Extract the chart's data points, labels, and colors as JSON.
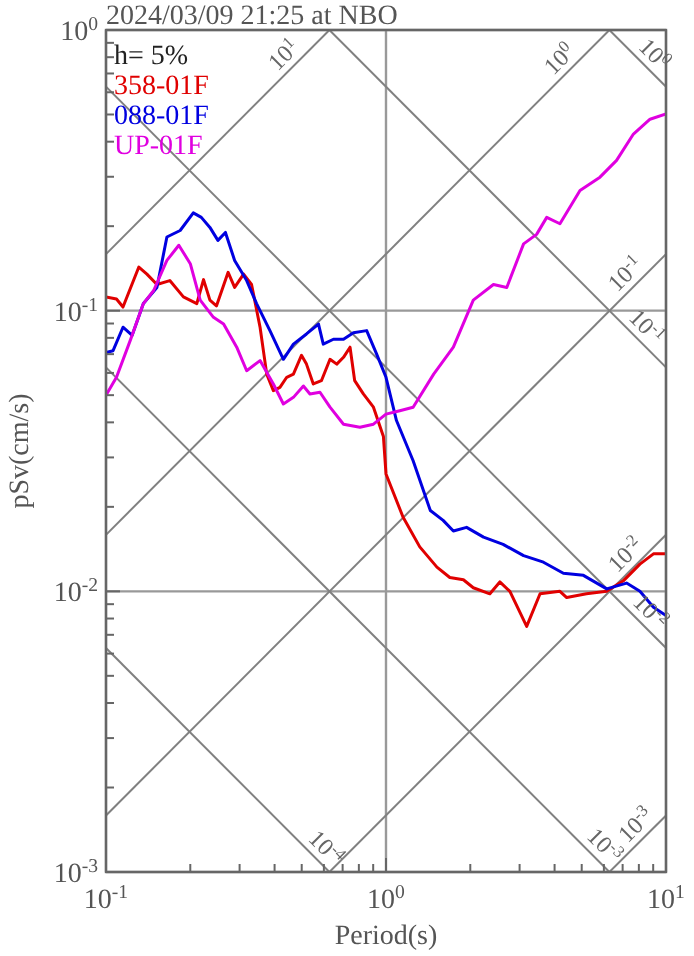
{
  "chart_data": {
    "type": "line",
    "title": "2024/03/09 21:25 at NBO",
    "xlabel": "Period(s)",
    "ylabel": "pSv(cm/s)",
    "log": "xy",
    "grid": true,
    "legend": "top left",
    "line_style": "solid",
    "marker": "none",
    "xlim": [
      0.1,
      10
    ],
    "ylim": [
      0.001,
      1
    ],
    "xticks": [
      {
        "value": 0.1,
        "label": "10$^{-1}$"
      },
      {
        "value": 0.2,
        "label": null
      },
      {
        "value": 0.3,
        "label": null
      },
      {
        "value": 0.4,
        "label": null
      },
      {
        "value": 0.5,
        "label": null
      },
      {
        "value": 0.6,
        "label": null
      },
      {
        "value": 0.7,
        "label": null
      },
      {
        "value": 0.8,
        "label": null
      },
      {
        "value": 0.9,
        "label": null
      },
      {
        "value": 1,
        "label": "10$^{0}$"
      },
      {
        "value": 2,
        "label": null
      },
      {
        "value": 3,
        "label": null
      },
      {
        "value": 4,
        "label": null
      },
      {
        "value": 5,
        "label": null
      },
      {
        "value": 6,
        "label": null
      },
      {
        "value": 7,
        "label": null
      },
      {
        "value": 8,
        "label": null
      },
      {
        "value": 9,
        "label": null
      },
      {
        "value": 10,
        "label": "10$^{1}$"
      }
    ],
    "yticks": [
      {
        "value": 0.001,
        "label": "10$^{-3}$"
      },
      {
        "value": 0.002,
        "label": null
      },
      {
        "value": 0.003,
        "label": null
      },
      {
        "value": 0.004,
        "label": null
      },
      {
        "value": 0.005,
        "label": null
      },
      {
        "value": 0.006,
        "label": null
      },
      {
        "value": 0.007,
        "label": null
      },
      {
        "value": 0.008,
        "label": null
      },
      {
        "value": 0.009,
        "label": null
      },
      {
        "value": 0.01,
        "label": "10$^{-2}$"
      },
      {
        "value": 0.02,
        "label": null
      },
      {
        "value": 0.03,
        "label": null
      },
      {
        "value": 0.04,
        "label": null
      },
      {
        "value": 0.05,
        "label": null
      },
      {
        "value": 0.06,
        "label": null
      },
      {
        "value": 0.07,
        "label": null
      },
      {
        "value": 0.08,
        "label": null
      },
      {
        "value": 0.09,
        "label": null
      },
      {
        "value": 0.1,
        "label": "10$^{-1}$"
      },
      {
        "value": 0.2,
        "label": null
      },
      {
        "value": 0.3,
        "label": null
      },
      {
        "value": 0.4,
        "label": null
      },
      {
        "value": 0.5,
        "label": null
      },
      {
        "value": 0.6,
        "label": null
      },
      {
        "value": 0.7,
        "label": null
      },
      {
        "value": 0.8,
        "label": null
      },
      {
        "value": 0.9,
        "label": null
      },
      {
        "value": 1,
        "label": "10$^{0}$"
      }
    ],
    "series": [
      {
        "color": "#808080",
        "x": [
          0.1,
          0.628
        ],
        "values": [
          0.159,
          1
        ]
      },
      {
        "color": "#808080",
        "x": [
          0.1,
          6.28
        ],
        "values": [
          0.0159,
          1
        ]
      },
      {
        "color": "#808080",
        "x": [
          0.1,
          10
        ],
        "values": [
          0.00159,
          0.159
        ]
      },
      {
        "color": "#808080",
        "x": [
          0.628,
          10
        ],
        "values": [
          0.001,
          0.0159
        ]
      },
      {
        "color": "#808080",
        "x": [
          6.28,
          10
        ],
        "values": [
          0.001,
          0.00159
        ]
      },
      {
        "color": "#808080",
        "x": [
          6.28,
          10
        ],
        "values": [
          1,
          0.628
        ]
      },
      {
        "color": "#808080",
        "x": [
          0.628,
          10
        ],
        "values": [
          1,
          0.0628
        ]
      },
      {
        "color": "#808080",
        "x": [
          0.1,
          10
        ],
        "values": [
          0.628,
          0.00628
        ]
      },
      {
        "color": "#808080",
        "x": [
          0.1,
          6.28
        ],
        "values": [
          0.0628,
          0.001
        ]
      },
      {
        "color": "#808080",
        "x": [
          0.1,
          0.628
        ],
        "values": [
          0.00628,
          0.001
        ]
      },
      {
        "name": "358-01F",
        "color": "#e00000",
        "x": [
          0.1,
          0.109,
          0.115,
          0.131,
          0.14,
          0.152,
          0.169,
          0.189,
          0.211,
          0.223,
          0.235,
          0.248,
          0.273,
          0.288,
          0.31,
          0.331,
          0.355,
          0.375,
          0.396,
          0.418,
          0.442,
          0.467,
          0.499,
          0.52,
          0.55,
          0.588,
          0.631,
          0.667,
          0.705,
          0.744,
          0.773,
          0.83,
          0.902,
          0.979,
          1.0,
          1.15,
          1.32,
          1.52,
          1.69,
          1.89,
          2.05,
          2.35,
          2.55,
          2.77,
          3.18,
          3.55,
          4.18,
          4.42,
          5.2,
          6.14,
          7.04,
          8.07,
          9.02,
          10
        ],
        "values": [
          0.112,
          0.11,
          0.103,
          0.143,
          0.135,
          0.124,
          0.128,
          0.112,
          0.106,
          0.129,
          0.109,
          0.104,
          0.137,
          0.121,
          0.135,
          0.124,
          0.0873,
          0.0594,
          0.0519,
          0.0533,
          0.0579,
          0.0594,
          0.0693,
          0.0645,
          0.0548,
          0.0563,
          0.0671,
          0.0645,
          0.0682,
          0.0741,
          0.0563,
          0.0505,
          0.0453,
          0.0356,
          0.0262,
          0.0184,
          0.0144,
          0.0122,
          0.0112,
          0.011,
          0.0103,
          0.0098,
          0.0108,
          0.01,
          0.0075,
          0.0098,
          0.01,
          0.0095,
          0.0098,
          0.01,
          0.0109,
          0.0125,
          0.0136,
          0.0136
        ]
      },
      {
        "name": "088-01F",
        "color": "#0000e0",
        "x": [
          0.1,
          0.106,
          0.115,
          0.124,
          0.136,
          0.152,
          0.165,
          0.184,
          0.205,
          0.219,
          0.235,
          0.251,
          0.267,
          0.288,
          0.318,
          0.345,
          0.385,
          0.43,
          0.467,
          0.52,
          0.574,
          0.597,
          0.649,
          0.705,
          0.765,
          0.853,
          0.926,
          1.0,
          1.09,
          1.25,
          1.44,
          1.6,
          1.74,
          1.94,
          2.23,
          2.62,
          3.1,
          3.65,
          4.3,
          5.07,
          6.14,
          7.23,
          8.07,
          9.02,
          10
        ],
        "values": [
          0.0709,
          0.072,
          0.0873,
          0.0817,
          0.106,
          0.121,
          0.183,
          0.193,
          0.223,
          0.215,
          0.198,
          0.178,
          0.19,
          0.151,
          0.128,
          0.106,
          0.0849,
          0.0671,
          0.076,
          0.0826,
          0.0896,
          0.076,
          0.0791,
          0.0791,
          0.0835,
          0.0849,
          0.07,
          0.0579,
          0.0406,
          0.0292,
          0.0194,
          0.0179,
          0.0164,
          0.0169,
          0.0156,
          0.0147,
          0.0134,
          0.0127,
          0.0116,
          0.0114,
          0.0102,
          0.0107,
          0.01,
          0.00877,
          0.0082
        ]
      },
      {
        "name": "UP-01F",
        "color": "#e000e0",
        "x": [
          0.1,
          0.109,
          0.122,
          0.136,
          0.148,
          0.165,
          0.182,
          0.2,
          0.217,
          0.242,
          0.263,
          0.293,
          0.318,
          0.355,
          0.396,
          0.43,
          0.467,
          0.507,
          0.535,
          0.581,
          0.631,
          0.705,
          0.807,
          0.902,
          1.0,
          1.12,
          1.25,
          1.48,
          1.74,
          2.05,
          2.42,
          2.7,
          3.1,
          3.45,
          3.75,
          4.18,
          4.93,
          5.81,
          6.66,
          7.65,
          8.77,
          10
        ],
        "values": [
          0.05,
          0.0579,
          0.0782,
          0.106,
          0.118,
          0.151,
          0.171,
          0.147,
          0.109,
          0.0947,
          0.0896,
          0.0741,
          0.0611,
          0.0664,
          0.0548,
          0.0465,
          0.0491,
          0.0539,
          0.0505,
          0.0512,
          0.0453,
          0.0394,
          0.0384,
          0.0394,
          0.0428,
          0.044,
          0.0453,
          0.0594,
          0.0741,
          0.109,
          0.124,
          0.121,
          0.173,
          0.187,
          0.215,
          0.204,
          0.268,
          0.299,
          0.343,
          0.426,
          0.481,
          0.502
        ]
      }
    ],
    "annotations": [
      "h= 5%",
      {
        "text": "10$^{1}$",
        "x": 0.47,
        "y": 0.748
      },
      {
        "text": "10$^{0}$",
        "x": 4.54,
        "y": 0.723
      },
      {
        "text": "10$^{0}$",
        "x": 8.34,
        "y": 0.753
      },
      {
        "text": "10$^{-1}$",
        "x": 7.81,
        "y": 0.124
      },
      {
        "text": "10$^{-1}$",
        "x": 7.81,
        "y": 0.0804
      },
      {
        "text": "10$^{-2}$",
        "x": 7.81,
        "y": 0.0124
      },
      {
        "text": "10$^{-2}$",
        "x": 8.08,
        "y": 0.00778
      },
      {
        "text": "10$^{-3}$",
        "x": 8.5,
        "y": 0.00135
      },
      {
        "text": "10$^{-3}$",
        "x": 5.53,
        "y": 0.00114
      },
      {
        "text": "10$^{-4}$",
        "x": 0.56,
        "y": 0.00112
      }
    ]
  }
}
